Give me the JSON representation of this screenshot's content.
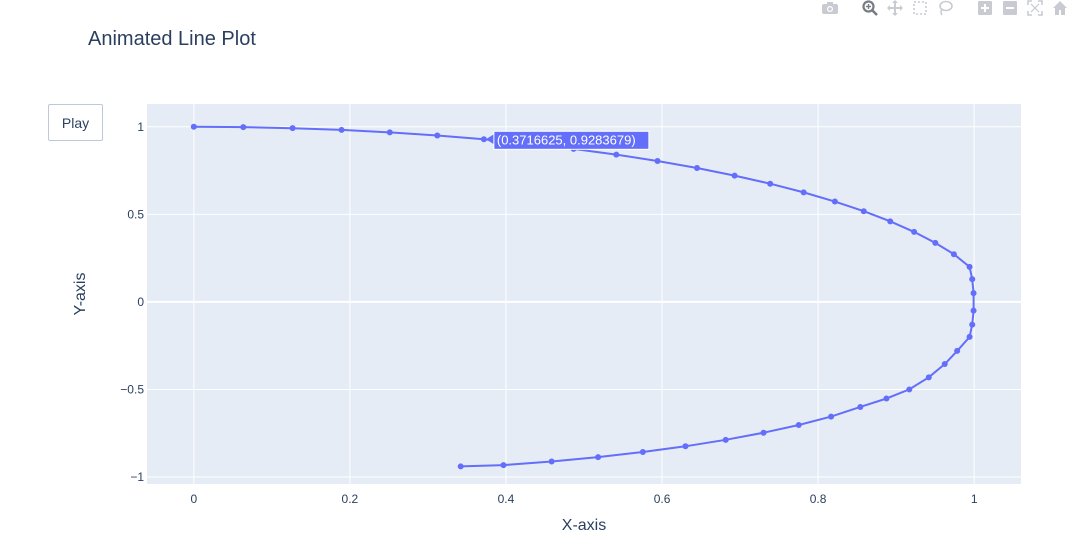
{
  "play_button": {
    "label": "Play"
  },
  "modebar": {
    "icons": [
      "camera-icon",
      "zoom-icon",
      "pan-icon",
      "box-select-icon",
      "lasso-icon",
      "zoom-in-icon",
      "zoom-out-icon",
      "autoscale-icon",
      "home-icon"
    ]
  },
  "colors": {
    "trace": "#636efa",
    "plot_bg": "#e5ecf6",
    "grid": "#ffffff",
    "text": "#2a3f5f"
  },
  "chart_data": {
    "type": "line",
    "title": "Animated Line Plot",
    "xlabel": "X-axis",
    "ylabel": "Y-axis",
    "xlim": [
      -0.06,
      1.06
    ],
    "ylim": [
      -1.04,
      1.13
    ],
    "x_ticks": [
      0,
      0.2,
      0.4,
      0.6,
      0.8,
      1
    ],
    "x_tick_labels": [
      "0",
      "0.2",
      "0.4",
      "0.6",
      "0.8",
      "1"
    ],
    "y_ticks": [
      -1,
      -0.5,
      0,
      0.5,
      1
    ],
    "y_tick_labels": [
      "−1",
      "−0.5",
      "0",
      "0.5",
      "1"
    ],
    "grid": true,
    "mode": "lines+markers",
    "series": [
      {
        "x": [
          0,
          0.0634,
          0.1266,
          0.1893,
          0.2511,
          0.312,
          0.3717,
          0.43,
          0.4866,
          0.5414,
          0.5942,
          0.6448,
          0.693,
          0.7386,
          0.7815,
          0.8215,
          0.8585,
          0.8924,
          0.923,
          0.9502,
          0.974,
          0.9941,
          0.9975,
          0.9992,
          0.9992,
          0.9975,
          0.9941,
          0.9782,
          0.9623,
          0.9418,
          0.9169,
          0.8876,
          0.8541,
          0.8166,
          0.7752,
          0.7301,
          0.6816,
          0.63,
          0.5754,
          0.5181,
          0.4585,
          0.3968,
          0.342
        ],
        "y": [
          1,
          0.998,
          0.992,
          0.9819,
          0.9679,
          0.9501,
          0.9284,
          0.9028,
          0.8736,
          0.8408,
          0.8044,
          0.7645,
          0.7213,
          0.6749,
          0.6254,
          0.5729,
          0.5177,
          0.4599,
          0.3996,
          0.3369,
          0.2721,
          0.2,
          0.13,
          0.05,
          -0.05,
          -0.13,
          -0.2,
          -0.28,
          -0.3546,
          -0.4309,
          -0.5,
          -0.5515,
          -0.6,
          -0.6553,
          -0.7031,
          -0.7473,
          -0.7878,
          -0.8246,
          -0.8575,
          -0.8865,
          -0.9114,
          -0.9321,
          -0.9397
        ]
      }
    ],
    "hover_label": "(0.3716625, 0.9283679)",
    "hover_point_index": 6
  }
}
